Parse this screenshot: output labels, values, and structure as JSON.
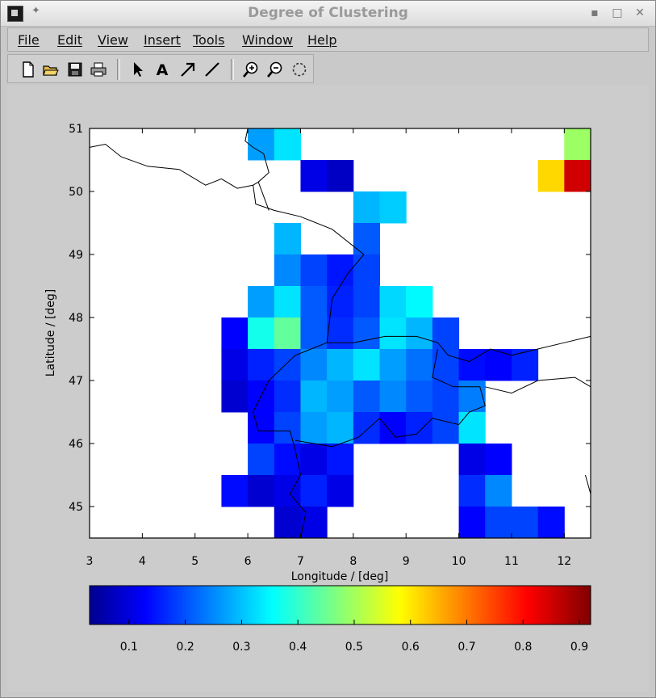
{
  "window": {
    "title": "Degree of Clustering"
  },
  "menu": {
    "items": [
      "File",
      "Edit",
      "View",
      "Insert",
      "Tools",
      "Window",
      "Help"
    ]
  },
  "toolbar": {
    "buttons": [
      "new-figure-icon",
      "open-file-icon",
      "save-icon",
      "print-icon",
      "select-arrow-icon",
      "insert-text-icon",
      "insert-arrow-icon",
      "insert-line-icon",
      "zoom-in-icon",
      "zoom-out-icon",
      "rotate-icon"
    ]
  },
  "colors": {
    "background": "#cccccc",
    "axes_bg": "#ffffff",
    "border": "#000000"
  },
  "chart_data": {
    "type": "heatmap",
    "title": "",
    "xlabel": "Longitude / [deg]",
    "ylabel": "Latitude / [deg]",
    "xlim": [
      3,
      12.5
    ],
    "ylim": [
      44.5,
      51
    ],
    "xticks": [
      3,
      4,
      5,
      6,
      7,
      8,
      9,
      10,
      11,
      12
    ],
    "yticks": [
      45,
      46,
      47,
      48,
      49,
      50,
      51
    ],
    "colormap": "jet",
    "colorbar": {
      "orientation": "horizontal",
      "placement": "bottom",
      "range": [
        0.03,
        0.92
      ],
      "ticks": [
        0.1,
        0.2,
        0.3,
        0.4,
        0.5,
        0.6,
        0.7,
        0.8,
        0.9
      ]
    },
    "cell_size_deg": 0.5,
    "cells": [
      {
        "lon": 6.25,
        "lat": 50.75,
        "value": 0.28
      },
      {
        "lon": 6.75,
        "lat": 50.75,
        "value": 0.34
      },
      {
        "lon": 7.25,
        "lat": 50.25,
        "value": 0.12
      },
      {
        "lon": 7.75,
        "lat": 50.25,
        "value": 0.09
      },
      {
        "lon": 8.25,
        "lat": 49.75,
        "value": 0.3
      },
      {
        "lon": 8.75,
        "lat": 49.75,
        "value": 0.32
      },
      {
        "lon": 12.25,
        "lat": 50.75,
        "value": 0.5
      },
      {
        "lon": 11.75,
        "lat": 50.25,
        "value": 0.62
      },
      {
        "lon": 12.25,
        "lat": 50.25,
        "value": 0.85
      },
      {
        "lon": 6.75,
        "lat": 49.25,
        "value": 0.3
      },
      {
        "lon": 8.25,
        "lat": 49.25,
        "value": 0.22
      },
      {
        "lon": 6.75,
        "lat": 48.75,
        "value": 0.26
      },
      {
        "lon": 7.25,
        "lat": 48.75,
        "value": 0.2
      },
      {
        "lon": 7.75,
        "lat": 48.75,
        "value": 0.16
      },
      {
        "lon": 8.25,
        "lat": 48.75,
        "value": 0.2
      },
      {
        "lon": 6.25,
        "lat": 48.25,
        "value": 0.28
      },
      {
        "lon": 6.75,
        "lat": 48.25,
        "value": 0.34
      },
      {
        "lon": 7.25,
        "lat": 48.25,
        "value": 0.22
      },
      {
        "lon": 7.75,
        "lat": 48.25,
        "value": 0.17
      },
      {
        "lon": 8.25,
        "lat": 48.25,
        "value": 0.2
      },
      {
        "lon": 8.75,
        "lat": 48.25,
        "value": 0.33
      },
      {
        "lon": 9.25,
        "lat": 48.25,
        "value": 0.36
      },
      {
        "lon": 5.75,
        "lat": 47.75,
        "value": 0.14
      },
      {
        "lon": 6.25,
        "lat": 47.75,
        "value": 0.38
      },
      {
        "lon": 6.75,
        "lat": 47.75,
        "value": 0.45
      },
      {
        "lon": 7.25,
        "lat": 47.75,
        "value": 0.22
      },
      {
        "lon": 7.75,
        "lat": 47.75,
        "value": 0.18
      },
      {
        "lon": 8.25,
        "lat": 47.75,
        "value": 0.22
      },
      {
        "lon": 8.75,
        "lat": 47.75,
        "value": 0.34
      },
      {
        "lon": 9.25,
        "lat": 47.75,
        "value": 0.3
      },
      {
        "lon": 9.75,
        "lat": 47.75,
        "value": 0.2
      },
      {
        "lon": 5.75,
        "lat": 47.25,
        "value": 0.12
      },
      {
        "lon": 6.25,
        "lat": 47.25,
        "value": 0.17
      },
      {
        "lon": 6.75,
        "lat": 47.25,
        "value": 0.2
      },
      {
        "lon": 7.25,
        "lat": 47.25,
        "value": 0.26
      },
      {
        "lon": 7.75,
        "lat": 47.25,
        "value": 0.3
      },
      {
        "lon": 8.25,
        "lat": 47.25,
        "value": 0.34
      },
      {
        "lon": 8.75,
        "lat": 47.25,
        "value": 0.28
      },
      {
        "lon": 9.25,
        "lat": 47.25,
        "value": 0.24
      },
      {
        "lon": 9.75,
        "lat": 47.25,
        "value": 0.2
      },
      {
        "lon": 10.25,
        "lat": 47.25,
        "value": 0.15
      },
      {
        "lon": 10.75,
        "lat": 47.25,
        "value": 0.14
      },
      {
        "lon": 11.25,
        "lat": 47.25,
        "value": 0.17
      },
      {
        "lon": 5.75,
        "lat": 46.75,
        "value": 0.1
      },
      {
        "lon": 6.25,
        "lat": 46.75,
        "value": 0.14
      },
      {
        "lon": 6.75,
        "lat": 46.75,
        "value": 0.18
      },
      {
        "lon": 7.25,
        "lat": 46.75,
        "value": 0.3
      },
      {
        "lon": 7.75,
        "lat": 46.75,
        "value": 0.28
      },
      {
        "lon": 8.25,
        "lat": 46.75,
        "value": 0.22
      },
      {
        "lon": 8.75,
        "lat": 46.75,
        "value": 0.26
      },
      {
        "lon": 9.25,
        "lat": 46.75,
        "value": 0.22
      },
      {
        "lon": 9.75,
        "lat": 46.75,
        "value": 0.2
      },
      {
        "lon": 10.25,
        "lat": 46.75,
        "value": 0.25
      },
      {
        "lon": 6.25,
        "lat": 46.25,
        "value": 0.14
      },
      {
        "lon": 6.75,
        "lat": 46.25,
        "value": 0.2
      },
      {
        "lon": 7.25,
        "lat": 46.25,
        "value": 0.28
      },
      {
        "lon": 7.75,
        "lat": 46.25,
        "value": 0.3
      },
      {
        "lon": 8.25,
        "lat": 46.25,
        "value": 0.18
      },
      {
        "lon": 8.75,
        "lat": 46.25,
        "value": 0.14
      },
      {
        "lon": 9.25,
        "lat": 46.25,
        "value": 0.17
      },
      {
        "lon": 9.75,
        "lat": 46.25,
        "value": 0.2
      },
      {
        "lon": 10.25,
        "lat": 46.25,
        "value": 0.34
      },
      {
        "lon": 6.25,
        "lat": 45.75,
        "value": 0.2
      },
      {
        "lon": 6.75,
        "lat": 45.75,
        "value": 0.15
      },
      {
        "lon": 7.25,
        "lat": 45.75,
        "value": 0.12
      },
      {
        "lon": 7.75,
        "lat": 45.75,
        "value": 0.16
      },
      {
        "lon": 10.25,
        "lat": 45.75,
        "value": 0.12
      },
      {
        "lon": 10.75,
        "lat": 45.75,
        "value": 0.14
      },
      {
        "lon": 5.75,
        "lat": 45.25,
        "value": 0.15
      },
      {
        "lon": 6.25,
        "lat": 45.25,
        "value": 0.1
      },
      {
        "lon": 6.75,
        "lat": 45.25,
        "value": 0.12
      },
      {
        "lon": 7.25,
        "lat": 45.25,
        "value": 0.17
      },
      {
        "lon": 7.75,
        "lat": 45.25,
        "value": 0.12
      },
      {
        "lon": 10.25,
        "lat": 45.25,
        "value": 0.18
      },
      {
        "lon": 10.75,
        "lat": 45.25,
        "value": 0.26
      },
      {
        "lon": 6.75,
        "lat": 44.75,
        "value": 0.1
      },
      {
        "lon": 7.25,
        "lat": 44.75,
        "value": 0.12
      },
      {
        "lon": 10.25,
        "lat": 44.75,
        "value": 0.14
      },
      {
        "lon": 10.75,
        "lat": 44.75,
        "value": 0.2
      },
      {
        "lon": 11.25,
        "lat": 44.75,
        "value": 0.2
      },
      {
        "lon": 11.75,
        "lat": 44.75,
        "value": 0.15
      }
    ],
    "borders": [
      [
        [
          3,
          50.7
        ],
        [
          3.3,
          50.75
        ],
        [
          3.6,
          50.55
        ],
        [
          4.1,
          50.4
        ],
        [
          4.7,
          50.35
        ],
        [
          5.2,
          50.1
        ],
        [
          5.5,
          50.2
        ],
        [
          5.8,
          50.05
        ],
        [
          6.1,
          50.1
        ],
        [
          6.15,
          49.8
        ],
        [
          6.5,
          49.7
        ],
        [
          7.0,
          49.6
        ],
        [
          7.6,
          49.4
        ],
        [
          8.2,
          49.0
        ],
        [
          7.9,
          48.7
        ],
        [
          7.6,
          48.3
        ],
        [
          7.5,
          47.6
        ],
        [
          7.2,
          47.5
        ],
        [
          6.9,
          47.4
        ],
        [
          6.4,
          47.0
        ],
        [
          6.1,
          46.5
        ],
        [
          6.2,
          46.2
        ],
        [
          6.8,
          46.2
        ],
        [
          6.9,
          45.9
        ],
        [
          7.0,
          45.5
        ],
        [
          6.8,
          45.2
        ],
        [
          7.1,
          44.9
        ],
        [
          7.0,
          44.5
        ]
      ],
      [
        [
          6.0,
          51.0
        ],
        [
          5.95,
          50.8
        ],
        [
          6.1,
          50.7
        ],
        [
          6.3,
          50.6
        ],
        [
          6.4,
          50.3
        ],
        [
          6.2,
          50.15
        ],
        [
          6.1,
          50.1
        ]
      ],
      [
        [
          6.2,
          50.15
        ],
        [
          6.4,
          49.7
        ]
      ],
      [
        [
          7.5,
          47.6
        ],
        [
          8.0,
          47.6
        ],
        [
          8.6,
          47.7
        ],
        [
          9.2,
          47.7
        ],
        [
          9.6,
          47.6
        ],
        [
          9.8,
          47.4
        ],
        [
          10.2,
          47.3
        ],
        [
          10.6,
          47.5
        ],
        [
          11.0,
          47.4
        ],
        [
          11.5,
          47.5
        ],
        [
          12.0,
          47.6
        ],
        [
          12.5,
          47.7
        ]
      ],
      [
        [
          9.6,
          47.5
        ],
        [
          9.5,
          47.05
        ],
        [
          9.9,
          46.9
        ],
        [
          10.4,
          46.9
        ],
        [
          10.5,
          46.6
        ],
        [
          10.2,
          46.5
        ],
        [
          10.0,
          46.3
        ],
        [
          9.5,
          46.4
        ],
        [
          9.2,
          46.15
        ],
        [
          8.8,
          46.1
        ],
        [
          8.5,
          46.4
        ],
        [
          8.1,
          46.1
        ],
        [
          7.6,
          45.95
        ],
        [
          6.9,
          46.05
        ]
      ],
      [
        [
          10.5,
          46.9
        ],
        [
          11.0,
          46.8
        ],
        [
          11.5,
          47.0
        ],
        [
          12.2,
          47.05
        ],
        [
          12.5,
          46.9
        ]
      ],
      [
        [
          12.4,
          45.5
        ],
        [
          12.5,
          45.2
        ]
      ]
    ]
  }
}
